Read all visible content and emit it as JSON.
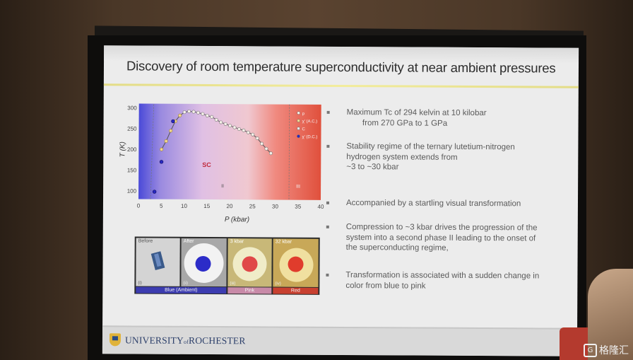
{
  "slide": {
    "title": "Discovery of room temperature  superconductivity at near ambient pressures"
  },
  "plot": {
    "ylabel": "T (K)",
    "xlabel": "P (kbar)",
    "yticks": [
      "300",
      "250",
      "200",
      "150",
      "100"
    ],
    "xticks": [
      "0",
      "5",
      "10",
      "15",
      "20",
      "25",
      "30",
      "35",
      "40"
    ],
    "region_sc": "SC",
    "region_ii": "II",
    "region_iii": "III",
    "legend": [
      "ρ",
      "χ′ (A.C.)",
      "C",
      "χ′ (D.C.)"
    ],
    "colors": {
      "blue": "#4a4ad8",
      "pink": "#e8b8d8",
      "red": "#e0503c",
      "dashed": "#777777"
    }
  },
  "chart_data": {
    "type": "scatter",
    "xlabel": "P (kbar)",
    "ylabel": "T (K)",
    "xlim": [
      0,
      40
    ],
    "ylim": [
      80,
      310
    ],
    "series": [
      {
        "name": "ρ",
        "x": [
          10,
          11,
          12,
          13,
          14,
          15,
          16,
          17,
          18,
          19,
          20,
          21,
          22,
          23,
          24,
          25,
          26,
          27,
          28,
          29
        ],
        "y": [
          290,
          292,
          291,
          289,
          286,
          282,
          279,
          272,
          266,
          262,
          258,
          254,
          250,
          247,
          242,
          237,
          228,
          215,
          203,
          192
        ]
      },
      {
        "name": "χ′ (A.C.)",
        "x": [
          5,
          6,
          7,
          8,
          9
        ],
        "y": [
          200,
          220,
          245,
          268,
          282
        ]
      },
      {
        "name": "χ′ (D.C.)",
        "x": [
          3.5,
          5,
          7.5
        ],
        "y": [
          98,
          170,
          268
        ]
      }
    ]
  },
  "images": {
    "panels": [
      {
        "label": "Before",
        "roman": "(i)"
      },
      {
        "label": "After",
        "roman": "(ii)"
      },
      {
        "label": "3 kbar",
        "roman": "(iii)"
      },
      {
        "label": "32 kbar",
        "roman": "(iv)"
      }
    ],
    "captions": [
      "Blue (Ambient)",
      "Pink",
      "Red"
    ]
  },
  "bullets": [
    [
      "Maximum Tc of 294 kelvin at 10 kilobar",
      "       from 270 GPa to 1 GPa"
    ],
    [
      "Stability regime of the ternary lutetium-nitrogen",
      "hydrogen system extends from",
      "~3 to ~30 kbar"
    ],
    [
      "Accompanied by a startling visual transformation"
    ],
    [
      "Compression to ~3 kbar drives the progression of the",
      "system into a second phase II leading to the onset of",
      "the superconducting regime,"
    ],
    [
      "Transformation is associated with a sudden change in",
      "color from blue to pink"
    ]
  ],
  "footer": {
    "university_pre": "UNIVERSITY",
    "university_of": "of",
    "university_post": "ROCHESTER"
  },
  "watermark": {
    "glyph": "G",
    "text": "格隆汇"
  }
}
